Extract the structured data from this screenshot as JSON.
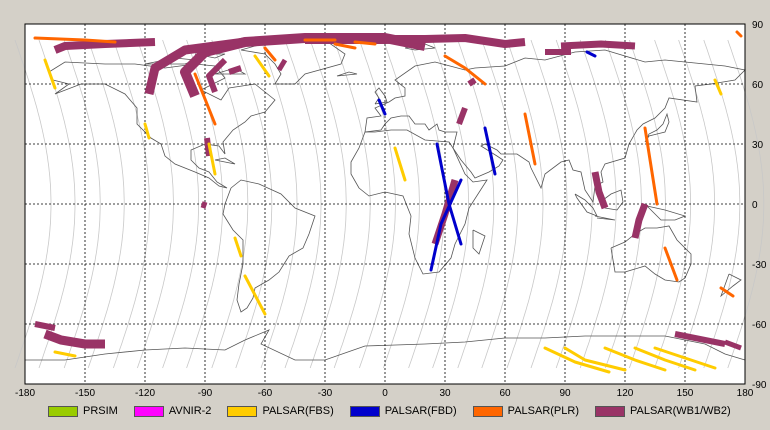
{
  "chart_data": {
    "type": "map",
    "projection": "equirectangular",
    "xlim": [
      -180,
      180
    ],
    "ylim": [
      -90,
      90
    ],
    "grid": true,
    "x_ticks": [
      -180,
      -150,
      -120,
      -90,
      -60,
      -30,
      0,
      30,
      60,
      90,
      120,
      150,
      180
    ],
    "x_tick_labels": [
      "-180",
      "-150",
      "-120",
      "-90",
      "-60",
      "-30",
      "0",
      "30",
      "60",
      "90",
      "120",
      "150",
      "180"
    ],
    "y_ticks": [
      90,
      60,
      30,
      0,
      -30,
      -60,
      -90
    ],
    "y_tick_labels": [
      "90",
      "60",
      "30",
      "0",
      "-30",
      "-60",
      "-90"
    ],
    "legend": {
      "placement": "bottom",
      "entries": [
        {
          "name": "PRSIM",
          "color": "#99cc00"
        },
        {
          "name": "AVNIR-2",
          "color": "#ff00ff"
        },
        {
          "name": "PALSAR(FBS)",
          "color": "#ffcc00"
        },
        {
          "name": "PALSAR(FBD)",
          "color": "#0000cc"
        },
        {
          "name": "PALSAR(PLR)",
          "color": "#ff6600"
        },
        {
          "name": "PALSAR(WB1/WB2)",
          "color": "#993366"
        }
      ]
    },
    "swaths": [
      {
        "sensor": "PALSAR(WB1/WB2)",
        "width": 5,
        "points": [
          [
            -95,
            54
          ],
          [
            -100,
            66
          ],
          [
            -90,
            76
          ],
          [
            -70,
            81
          ],
          [
            -40,
            83
          ],
          [
            0,
            83
          ],
          [
            20,
            79
          ]
        ]
      },
      {
        "sensor": "PALSAR(WB1/WB2)",
        "width": 4.5,
        "points": [
          [
            -118,
            55
          ],
          [
            -115,
            68
          ],
          [
            -100,
            77
          ],
          [
            -70,
            81
          ]
        ]
      },
      {
        "sensor": "PALSAR(WB1/WB2)",
        "width": 3,
        "points": [
          [
            -85,
            56
          ],
          [
            -88,
            64
          ],
          [
            -80,
            72
          ]
        ]
      },
      {
        "sensor": "PALSAR(WB1/WB2)",
        "width": 4,
        "points": [
          [
            -40,
            82
          ],
          [
            0,
            82
          ],
          [
            40,
            83
          ],
          [
            60,
            80
          ],
          [
            70,
            81
          ]
        ]
      },
      {
        "sensor": "PALSAR(WB1/WB2)",
        "width": 4,
        "points": [
          [
            -165,
            77
          ],
          [
            -160,
            79
          ],
          [
            -140,
            80
          ],
          [
            -115,
            81
          ]
        ]
      },
      {
        "sensor": "PALSAR(WB1/WB2)",
        "width": 3,
        "points": [
          [
            -20,
            83
          ],
          [
            20,
            83
          ]
        ]
      },
      {
        "sensor": "PALSAR(WB1/WB2)",
        "width": 3.5,
        "points": [
          [
            88,
            79
          ],
          [
            108,
            80
          ],
          [
            125,
            79
          ]
        ]
      },
      {
        "sensor": "PALSAR(WB1/WB2)",
        "width": 3,
        "points": [
          [
            80,
            76
          ],
          [
            93,
            76
          ]
        ]
      },
      {
        "sensor": "PALSAR(WB1/WB2)",
        "width": 3,
        "points": [
          [
            -89,
            33
          ],
          [
            -88,
            24
          ]
        ]
      },
      {
        "sensor": "PALSAR(WB1/WB2)",
        "width": 2.5,
        "points": [
          [
            -90,
            1
          ],
          [
            -91,
            -2
          ]
        ]
      },
      {
        "sensor": "PALSAR(WB1/WB2)",
        "width": 3,
        "points": [
          [
            -78,
            66
          ],
          [
            -72,
            68
          ]
        ]
      },
      {
        "sensor": "PALSAR(WB1/WB2)",
        "width": 2.5,
        "points": [
          [
            -53,
            67
          ],
          [
            -50,
            72
          ]
        ]
      },
      {
        "sensor": "PALSAR(WB1/WB2)",
        "width": 3.5,
        "points": [
          [
            35,
            12
          ],
          [
            30,
            -5
          ],
          [
            25,
            -20
          ]
        ]
      },
      {
        "sensor": "PALSAR(WB1/WB2)",
        "width": 3,
        "points": [
          [
            40,
            48
          ],
          [
            37,
            40
          ]
        ]
      },
      {
        "sensor": "PALSAR(WB1/WB2)",
        "width": 3,
        "points": [
          [
            45,
            62
          ],
          [
            42,
            60
          ]
        ]
      },
      {
        "sensor": "PALSAR(WB1/WB2)",
        "width": 3.5,
        "points": [
          [
            105,
            16
          ],
          [
            107,
            6
          ],
          [
            110,
            -2
          ]
        ]
      },
      {
        "sensor": "PALSAR(WB1/WB2)",
        "width": 3.5,
        "points": [
          [
            130,
            0
          ],
          [
            127,
            -8
          ],
          [
            125,
            -17
          ]
        ]
      },
      {
        "sensor": "PALSAR(WB1/WB2)",
        "width": 4.5,
        "points": [
          [
            -170,
            -65
          ],
          [
            -162,
            -68
          ],
          [
            -150,
            -70
          ],
          [
            -140,
            -70
          ]
        ]
      },
      {
        "sensor": "PALSAR(WB1/WB2)",
        "width": 3,
        "points": [
          [
            -175,
            -60
          ],
          [
            -165,
            -62
          ]
        ]
      },
      {
        "sensor": "PALSAR(WB1/WB2)",
        "width": 3,
        "points": [
          [
            145,
            -65
          ],
          [
            160,
            -68
          ],
          [
            170,
            -70
          ]
        ]
      },
      {
        "sensor": "PALSAR(WB1/WB2)",
        "width": 2.5,
        "points": [
          [
            170,
            -69
          ],
          [
            178,
            -72
          ]
        ]
      },
      {
        "sensor": "PALSAR(FBD)",
        "width": 1.5,
        "points": [
          [
            23,
            -33
          ],
          [
            28,
            -10
          ],
          [
            38,
            12
          ]
        ]
      },
      {
        "sensor": "PALSAR(FBD)",
        "width": 1.5,
        "points": [
          [
            26,
            30
          ],
          [
            32,
            0
          ],
          [
            38,
            -20
          ]
        ]
      },
      {
        "sensor": "PALSAR(FBD)",
        "width": 1.5,
        "points": [
          [
            50,
            38
          ],
          [
            55,
            15
          ]
        ]
      },
      {
        "sensor": "PALSAR(FBD)",
        "width": 1.5,
        "points": [
          [
            -3,
            52
          ],
          [
            0,
            45
          ]
        ]
      },
      {
        "sensor": "PALSAR(FBD)",
        "width": 1.5,
        "points": [
          [
            101,
            76
          ],
          [
            105,
            74
          ]
        ]
      },
      {
        "sensor": "PALSAR(FBS)",
        "width": 1.5,
        "points": [
          [
            -170,
            72
          ],
          [
            -165,
            58
          ]
        ]
      },
      {
        "sensor": "PALSAR(FBS)",
        "width": 1.5,
        "points": [
          [
            -120,
            40
          ],
          [
            -118,
            33
          ]
        ]
      },
      {
        "sensor": "PALSAR(FBS)",
        "width": 1.5,
        "points": [
          [
            -88,
            30
          ],
          [
            -85,
            15
          ]
        ]
      },
      {
        "sensor": "PALSAR(FBS)",
        "width": 1.5,
        "points": [
          [
            -65,
            74
          ],
          [
            -58,
            64
          ]
        ]
      },
      {
        "sensor": "PALSAR(FBS)",
        "width": 1.5,
        "points": [
          [
            -70,
            -36
          ],
          [
            -60,
            -55
          ]
        ]
      },
      {
        "sensor": "PALSAR(FBS)",
        "width": 1.5,
        "points": [
          [
            -75,
            -17
          ],
          [
            -72,
            -26
          ]
        ]
      },
      {
        "sensor": "PALSAR(FBS)",
        "width": 1.5,
        "points": [
          [
            5,
            28
          ],
          [
            10,
            12
          ]
        ]
      },
      {
        "sensor": "PALSAR(FBS)",
        "width": 1.5,
        "points": [
          [
            165,
            62
          ],
          [
            168,
            55
          ]
        ]
      },
      {
        "sensor": "PALSAR(FBS)",
        "width": 1.5,
        "points": [
          [
            90,
            -72
          ],
          [
            100,
            -78
          ],
          [
            120,
            -83
          ]
        ]
      },
      {
        "sensor": "PALSAR(FBS)",
        "width": 1.5,
        "points": [
          [
            110,
            -72
          ],
          [
            125,
            -78
          ],
          [
            140,
            -83
          ]
        ]
      },
      {
        "sensor": "PALSAR(FBS)",
        "width": 1.5,
        "points": [
          [
            80,
            -72
          ],
          [
            95,
            -79
          ],
          [
            112,
            -84
          ]
        ]
      },
      {
        "sensor": "PALSAR(FBS)",
        "width": 1.5,
        "points": [
          [
            125,
            -72
          ],
          [
            140,
            -78
          ],
          [
            155,
            -83
          ]
        ]
      },
      {
        "sensor": "PALSAR(FBS)",
        "width": 1.5,
        "points": [
          [
            135,
            -72
          ],
          [
            150,
            -77
          ],
          [
            165,
            -82
          ]
        ]
      },
      {
        "sensor": "PALSAR(FBS)",
        "width": 1.5,
        "points": [
          [
            -165,
            -74
          ],
          [
            -155,
            -76
          ]
        ]
      },
      {
        "sensor": "PALSAR(PLR)",
        "width": 1.5,
        "points": [
          [
            -175,
            83
          ],
          [
            -150,
            82
          ],
          [
            -135,
            81
          ]
        ]
      },
      {
        "sensor": "PALSAR(PLR)",
        "width": 1.5,
        "points": [
          [
            -95,
            65
          ],
          [
            -85,
            40
          ]
        ]
      },
      {
        "sensor": "PALSAR(PLR)",
        "width": 1.5,
        "points": [
          [
            -40,
            82
          ],
          [
            -25,
            82
          ]
        ]
      },
      {
        "sensor": "PALSAR(PLR)",
        "width": 1.5,
        "points": [
          [
            -15,
            81
          ],
          [
            -5,
            80
          ]
        ]
      },
      {
        "sensor": "PALSAR(PLR)",
        "width": 1.5,
        "points": [
          [
            -25,
            80
          ],
          [
            -15,
            78
          ]
        ]
      },
      {
        "sensor": "PALSAR(PLR)",
        "width": 1.5,
        "points": [
          [
            30,
            74
          ],
          [
            40,
            68
          ],
          [
            50,
            60
          ]
        ]
      },
      {
        "sensor": "PALSAR(PLR)",
        "width": 1.5,
        "points": [
          [
            -60,
            78
          ],
          [
            -55,
            72
          ]
        ]
      },
      {
        "sensor": "PALSAR(PLR)",
        "width": 1.5,
        "points": [
          [
            70,
            45
          ],
          [
            75,
            20
          ]
        ]
      },
      {
        "sensor": "PALSAR(PLR)",
        "width": 1.5,
        "points": [
          [
            130,
            38
          ],
          [
            136,
            0
          ]
        ]
      },
      {
        "sensor": "PALSAR(PLR)",
        "width": 1.5,
        "points": [
          [
            140,
            -22
          ],
          [
            146,
            -38
          ]
        ]
      },
      {
        "sensor": "PALSAR(PLR)",
        "width": 1.5,
        "points": [
          [
            168,
            -42
          ],
          [
            174,
            -46
          ]
        ]
      },
      {
        "sensor": "PALSAR(PLR)",
        "width": 1.5,
        "points": [
          [
            176,
            86
          ],
          [
            178,
            84
          ]
        ]
      }
    ]
  }
}
